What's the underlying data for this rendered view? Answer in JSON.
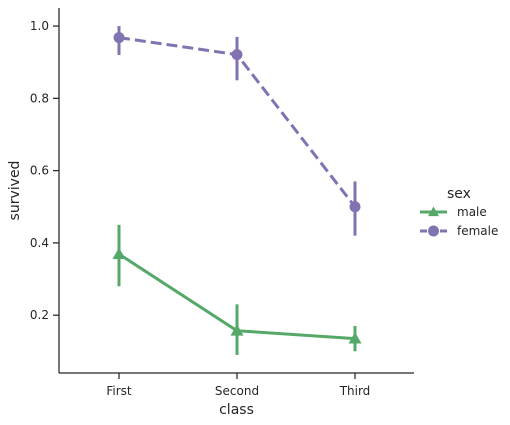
{
  "chart_data": {
    "type": "line",
    "title": "",
    "xlabel": "class",
    "ylabel": "survived",
    "categories": [
      "First",
      "Second",
      "Third"
    ],
    "ylim": [
      0.04,
      1.05
    ],
    "yticks": [
      0.2,
      0.4,
      0.6,
      0.8,
      1.0
    ],
    "ytick_labels": [
      "0.2",
      "0.4",
      "0.6",
      "0.8",
      "1.0"
    ],
    "grid": false,
    "legend": {
      "title": "sex",
      "placement": "right"
    },
    "series": [
      {
        "name": "male",
        "color": "#55a868",
        "marker": "triangle",
        "linestyle": "solid",
        "values": [
          0.369,
          0.157,
          0.135
        ],
        "ci_low": [
          0.28,
          0.09,
          0.1
        ],
        "ci_high": [
          0.45,
          0.23,
          0.17
        ]
      },
      {
        "name": "female",
        "color": "#8172b2",
        "marker": "circle",
        "linestyle": "dashed",
        "values": [
          0.968,
          0.921,
          0.5
        ],
        "ci_low": [
          0.92,
          0.85,
          0.42
        ],
        "ci_high": [
          1.0,
          0.97,
          0.57
        ]
      }
    ]
  }
}
